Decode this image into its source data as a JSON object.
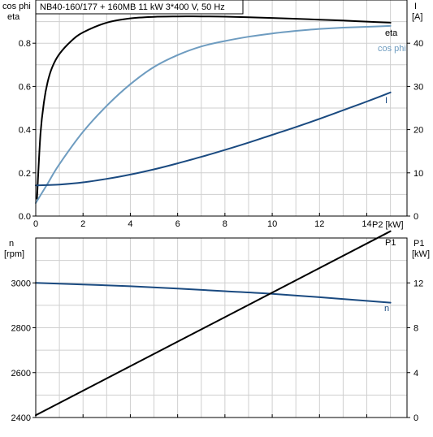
{
  "title": "NB40-160/177 + 160MB   11 kW   3*400 V, 50 Hz",
  "colors": {
    "eta": "#000000",
    "cos_phi": "#6e9cc0",
    "current": "#1a4a80",
    "speed": "#1a4a80",
    "p1": "#000000",
    "grid": "#cfcfcf"
  },
  "chart_data": [
    {
      "type": "line",
      "name": "efficiency-chart",
      "xlabel": "P2 [kW]",
      "ylabel_left": [
        "cos phi",
        "eta"
      ],
      "ylabel_right": [
        "I",
        "[A]"
      ],
      "xlim": [
        0,
        15.7
      ],
      "ylim_left": [
        0,
        1.0
      ],
      "ylim_right": [
        0,
        50
      ],
      "xticks": [
        0,
        2,
        4,
        6,
        8,
        10,
        12,
        14
      ],
      "yticks_left": [
        0.0,
        0.2,
        0.4,
        0.6,
        0.8
      ],
      "ytick_labels_left": [
        "0.0",
        "0.2",
        "0.4",
        "0.6",
        "0.8"
      ],
      "yticks_right": [
        0,
        10,
        20,
        30,
        40
      ],
      "grid": true,
      "series": [
        {
          "name": "eta",
          "axis": "left",
          "x": [
            0.05,
            0.2,
            0.35,
            0.5,
            0.7,
            1.0,
            1.5,
            2.0,
            3.0,
            4.0,
            5.0,
            6.0,
            7.0,
            8.0,
            9.0,
            10.0,
            11.0,
            12.0,
            13.0,
            14.0,
            15.0
          ],
          "values": [
            0.08,
            0.38,
            0.53,
            0.62,
            0.69,
            0.75,
            0.81,
            0.85,
            0.895,
            0.915,
            0.922,
            0.924,
            0.924,
            0.923,
            0.92,
            0.917,
            0.913,
            0.909,
            0.905,
            0.9,
            0.895
          ]
        },
        {
          "name": "cos phi",
          "axis": "left",
          "x": [
            0,
            0.5,
            1.0,
            2.0,
            3.0,
            4.0,
            5.0,
            6.0,
            7.0,
            8.0,
            9.0,
            10.0,
            11.0,
            12.0,
            13.0,
            14.0,
            15.0
          ],
          "values": [
            0.06,
            0.15,
            0.24,
            0.39,
            0.51,
            0.61,
            0.69,
            0.745,
            0.785,
            0.81,
            0.83,
            0.845,
            0.857,
            0.866,
            0.872,
            0.876,
            0.88
          ]
        },
        {
          "name": "I",
          "axis": "right",
          "x": [
            0,
            1,
            2,
            3,
            4,
            5,
            6,
            7,
            8,
            9,
            10,
            11,
            12,
            13,
            14,
            15
          ],
          "values": [
            7.1,
            7.3,
            7.8,
            8.6,
            9.6,
            10.8,
            12.2,
            13.7,
            15.3,
            17.0,
            18.8,
            20.6,
            22.5,
            24.5,
            26.5,
            28.6
          ]
        }
      ]
    },
    {
      "type": "line",
      "name": "speed-power-chart",
      "xlabel": "",
      "ylabel_left": [
        "n",
        "[rpm]"
      ],
      "ylabel_right": [
        "P1",
        "[kW]"
      ],
      "xlim": [
        0,
        15.7
      ],
      "ylim_left": [
        2400,
        3200
      ],
      "ylim_right": [
        0,
        16
      ],
      "xticks": [
        0,
        2,
        4,
        6,
        8,
        10,
        12,
        14
      ],
      "yticks_left": [
        2400,
        2600,
        2800,
        3000
      ],
      "yticks_right": [
        0,
        4,
        8,
        12
      ],
      "grid": true,
      "series": [
        {
          "name": "n",
          "axis": "left",
          "x": [
            0,
            2,
            4,
            6,
            8,
            10,
            12,
            14,
            15
          ],
          "values": [
            3000,
            2993,
            2985,
            2975,
            2963,
            2951,
            2936,
            2920,
            2912
          ]
        },
        {
          "name": "P1",
          "axis": "right",
          "x": [
            0,
            15
          ],
          "values": [
            0.2,
            16.6
          ]
        }
      ]
    }
  ]
}
